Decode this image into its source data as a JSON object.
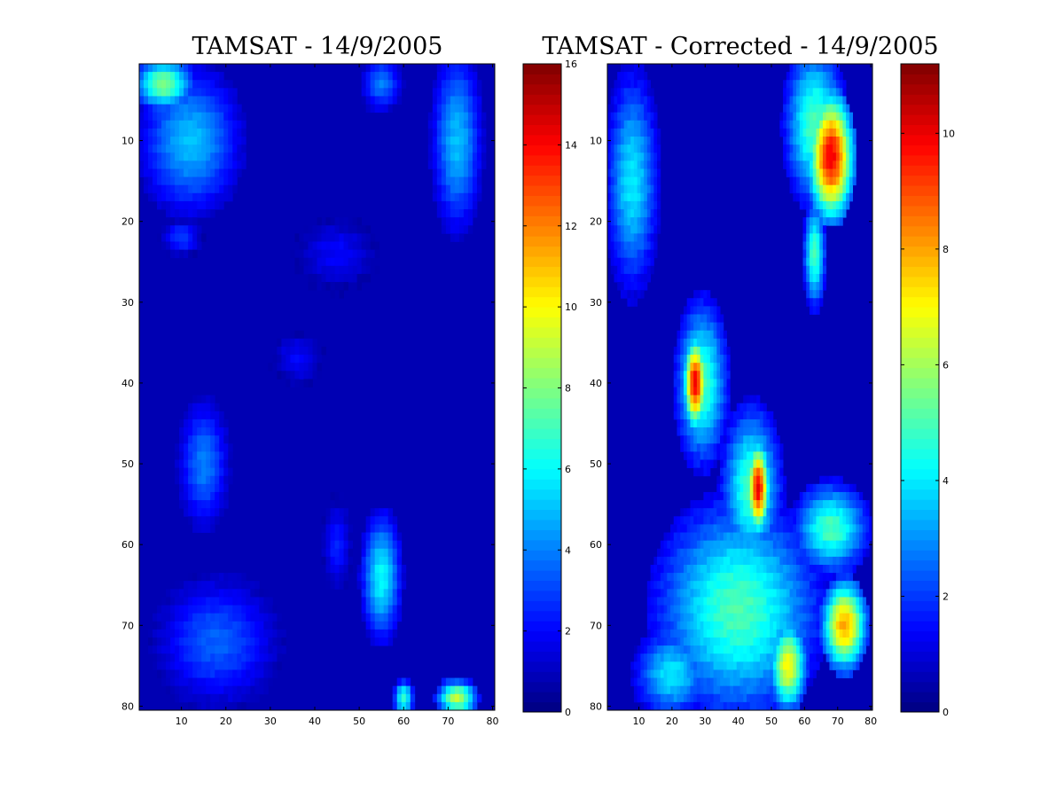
{
  "chart_data": [
    {
      "type": "heatmap",
      "title": "TAMSAT - 14/9/2005",
      "xlabel": "",
      "ylabel": "",
      "x_ticks": [
        10,
        20,
        30,
        40,
        50,
        60,
        70,
        80
      ],
      "y_ticks": [
        10,
        20,
        30,
        40,
        50,
        60,
        70,
        80
      ],
      "xlim": [
        0.5,
        80.5
      ],
      "ylim": [
        80.5,
        0.5
      ],
      "colormap": "jet",
      "clim": [
        0,
        16
      ],
      "colorbar_ticks": [
        0,
        2,
        4,
        6,
        8,
        10,
        12,
        14,
        16
      ],
      "grid": false,
      "features": [
        {
          "cx": 12,
          "cy": 10,
          "rx": 10,
          "ry": 8,
          "v": 5
        },
        {
          "cx": 6,
          "cy": 3,
          "rx": 6,
          "ry": 3,
          "v": 8
        },
        {
          "cx": 72,
          "cy": 10,
          "rx": 5,
          "ry": 10,
          "v": 5
        },
        {
          "cx": 55,
          "cy": 3,
          "rx": 4,
          "ry": 3,
          "v": 4
        },
        {
          "cx": 45,
          "cy": 24,
          "rx": 8,
          "ry": 4,
          "v": 2
        },
        {
          "cx": 10,
          "cy": 22,
          "rx": 4,
          "ry": 2,
          "v": 3
        },
        {
          "cx": 36,
          "cy": 37,
          "rx": 5,
          "ry": 3,
          "v": 2
        },
        {
          "cx": 15,
          "cy": 50,
          "rx": 5,
          "ry": 7,
          "v": 4
        },
        {
          "cx": 18,
          "cy": 72,
          "rx": 12,
          "ry": 7,
          "v": 3.5
        },
        {
          "cx": 55,
          "cy": 64,
          "rx": 4,
          "ry": 7,
          "v": 6
        },
        {
          "cx": 45,
          "cy": 60,
          "rx": 3,
          "ry": 5,
          "v": 2.5
        },
        {
          "cx": 72,
          "cy": 79,
          "rx": 4,
          "ry": 2,
          "v": 9
        },
        {
          "cx": 60,
          "cy": 79,
          "rx": 2,
          "ry": 2,
          "v": 7
        }
      ]
    },
    {
      "type": "heatmap",
      "title": "TAMSAT - Corrected - 14/9/2005",
      "xlabel": "",
      "ylabel": "",
      "x_ticks": [
        10,
        20,
        30,
        40,
        50,
        60,
        70,
        80
      ],
      "y_ticks": [
        10,
        20,
        30,
        40,
        50,
        60,
        70,
        80
      ],
      "xlim": [
        0.5,
        80.5
      ],
      "ylim": [
        80.5,
        0.5
      ],
      "colormap": "jet",
      "clim": [
        0,
        11.2
      ],
      "colorbar_ticks": [
        0,
        2,
        4,
        6,
        8,
        10
      ],
      "grid": false,
      "features": [
        {
          "cx": 68,
          "cy": 12,
          "rx": 6,
          "ry": 7,
          "v": 10
        },
        {
          "cx": 63,
          "cy": 8,
          "rx": 8,
          "ry": 9,
          "v": 5
        },
        {
          "cx": 63,
          "cy": 24,
          "rx": 3,
          "ry": 6,
          "v": 5
        },
        {
          "cx": 8,
          "cy": 15,
          "rx": 7,
          "ry": 12,
          "v": 4
        },
        {
          "cx": 27,
          "cy": 40,
          "rx": 3,
          "ry": 5,
          "v": 10
        },
        {
          "cx": 29,
          "cy": 40,
          "rx": 7,
          "ry": 9,
          "v": 5
        },
        {
          "cx": 46,
          "cy": 53,
          "rx": 3,
          "ry": 5,
          "v": 10
        },
        {
          "cx": 44,
          "cy": 53,
          "rx": 8,
          "ry": 9,
          "v": 5
        },
        {
          "cx": 40,
          "cy": 68,
          "rx": 22,
          "ry": 12,
          "v": 5
        },
        {
          "cx": 72,
          "cy": 70,
          "rx": 6,
          "ry": 5,
          "v": 8
        },
        {
          "cx": 55,
          "cy": 75,
          "rx": 5,
          "ry": 5,
          "v": 7
        },
        {
          "cx": 68,
          "cy": 58,
          "rx": 10,
          "ry": 5,
          "v": 5
        },
        {
          "cx": 20,
          "cy": 76,
          "rx": 10,
          "ry": 5,
          "v": 4
        }
      ]
    }
  ]
}
